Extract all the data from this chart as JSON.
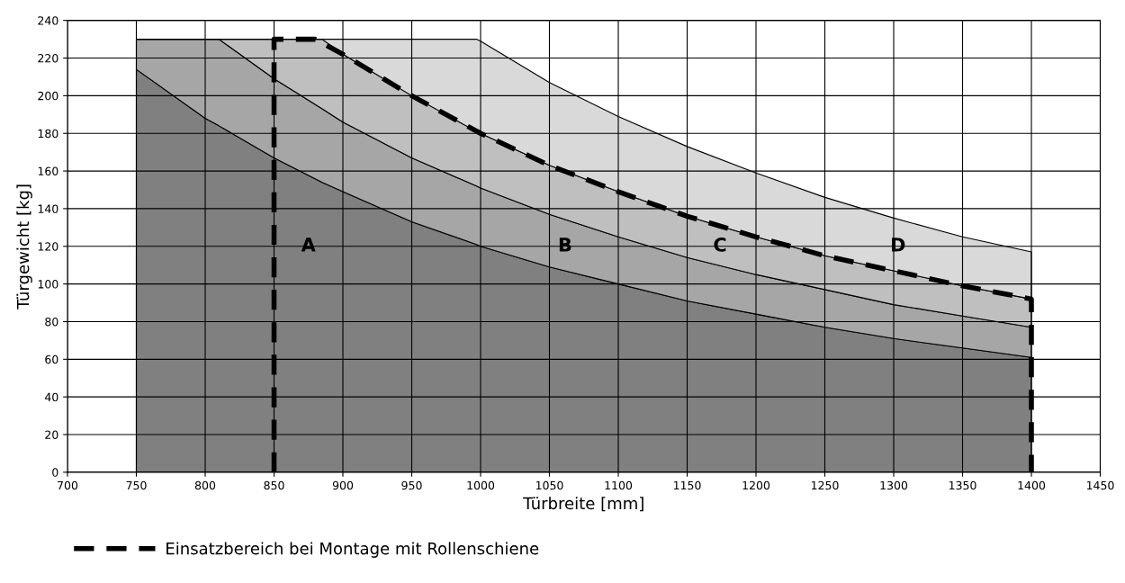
{
  "chart_data": {
    "type": "area",
    "stacked": true,
    "xlabel": "Türbreite [mm]",
    "ylabel": "Türgewicht [kg]",
    "xlim": [
      700,
      1450
    ],
    "xticks": [
      700,
      750,
      800,
      850,
      900,
      950,
      1000,
      1050,
      1100,
      1150,
      1200,
      1250,
      1300,
      1350,
      1400,
      1450
    ],
    "ylim": [
      0,
      240
    ],
    "yticks": [
      0,
      20,
      40,
      60,
      80,
      100,
      120,
      140,
      160,
      180,
      200,
      220,
      240
    ],
    "grid": true,
    "legend": "bottom",
    "x": [
      750,
      800,
      810,
      850,
      885,
      900,
      950,
      997,
      1000,
      1050,
      1100,
      1150,
      1200,
      1250,
      1300,
      1350,
      1400
    ],
    "series": [
      {
        "name": "A",
        "color": "#808080",
        "values": [
          214,
          188,
          184,
          167,
          154,
          149,
          133,
          121,
          120,
          109,
          100,
          91,
          84,
          77,
          71,
          66,
          61
        ]
      },
      {
        "name": "B",
        "color": "#a6a6a6",
        "values": [
          16,
          42,
          46,
          42,
          39,
          37,
          34,
          31,
          31,
          28,
          25,
          23,
          21,
          20,
          18,
          17,
          16
        ]
      },
      {
        "name": "C",
        "color": "#bfbfbf",
        "values": [
          0,
          0,
          0,
          21,
          37,
          36,
          33,
          29,
          29,
          26,
          24,
          22,
          20,
          18,
          18,
          16,
          15
        ]
      },
      {
        "name": "D",
        "color": "#d9d9d9",
        "values": [
          0,
          0,
          0,
          0,
          0,
          8,
          30,
          49,
          49,
          44,
          40,
          37,
          34,
          31,
          28,
          26,
          25
        ]
      },
      {
        "type": "line",
        "line_style": "dashed",
        "color": "#000000",
        "name": "Einsatzbereich bei Montage mit Rollenschiene",
        "x": [
          850,
          850,
          880,
          900,
          950,
          1000,
          1050,
          1100,
          1150,
          1200,
          1250,
          1300,
          1350,
          1400,
          1400
        ],
        "values": [
          0,
          230,
          230,
          222,
          200,
          180,
          163,
          149,
          136,
          125,
          115,
          107,
          99,
          92,
          0
        ]
      }
    ]
  }
}
